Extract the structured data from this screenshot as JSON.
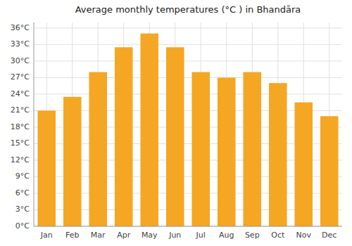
{
  "chart_data": {
    "type": "bar",
    "title": "Average monthly temperatures (°C ) in Bhandāra",
    "categories": [
      "Jan",
      "Feb",
      "Mar",
      "Apr",
      "May",
      "Jun",
      "Jul",
      "Aug",
      "Sep",
      "Oct",
      "Nov",
      "Dec"
    ],
    "values": [
      21.0,
      23.5,
      28.0,
      32.5,
      35.0,
      32.5,
      28.0,
      27.0,
      28.0,
      26.0,
      22.5,
      20.0
    ],
    "color": "#F5A623",
    "ylim": [
      0,
      37
    ],
    "yticks": [
      {
        "value": 0,
        "label": "0°C"
      },
      {
        "value": 3,
        "label": "3°C"
      },
      {
        "value": 6,
        "label": "6°C"
      },
      {
        "value": 9,
        "label": "9°C"
      },
      {
        "value": 12,
        "label": "12°C"
      },
      {
        "value": 15,
        "label": "15°C"
      },
      {
        "value": 18,
        "label": "18°C"
      },
      {
        "value": 21,
        "label": "21°C"
      },
      {
        "value": 24,
        "label": "24°C"
      },
      {
        "value": 27,
        "label": "27°C"
      },
      {
        "value": 30,
        "label": "30°C"
      },
      {
        "value": 33,
        "label": "33°C"
      },
      {
        "value": 36,
        "label": "36°C"
      }
    ],
    "grid": true
  }
}
